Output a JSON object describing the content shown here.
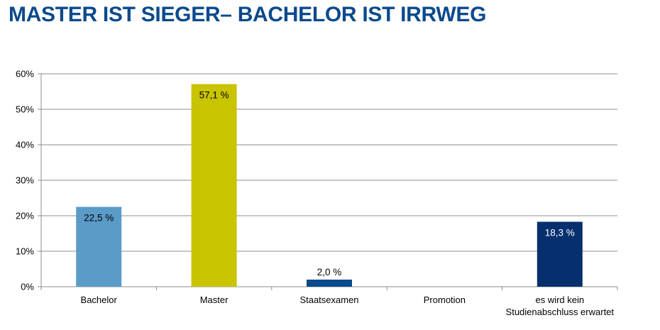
{
  "title": "MASTER IST SIEGER– BACHELOR IST IRRWEG",
  "chart_data": {
    "type": "bar",
    "categories": [
      "Bachelor",
      "Master",
      "Staatsexamen",
      "Promotion",
      "es wird kein\nStudienabschluss erwartet"
    ],
    "values": [
      22.5,
      57.1,
      2.0,
      0,
      18.3
    ],
    "data_labels": [
      "22,5 %",
      "57,1 %",
      "2,0 %",
      "",
      "18,3 %"
    ],
    "colors": [
      "#5b9bc8",
      "#c9c400",
      "#0b4a8c",
      "#0b4a8c",
      "#062f6e"
    ],
    "label_colors": [
      "#000000",
      "#000000",
      "#000000",
      "#000000",
      "#ffffff"
    ],
    "yticks": [
      "0%",
      "10%",
      "20%",
      "30%",
      "40%",
      "50%",
      "60%"
    ],
    "ylim": [
      0,
      60
    ],
    "grid": true,
    "gridline_color": "#8c8c8c"
  }
}
